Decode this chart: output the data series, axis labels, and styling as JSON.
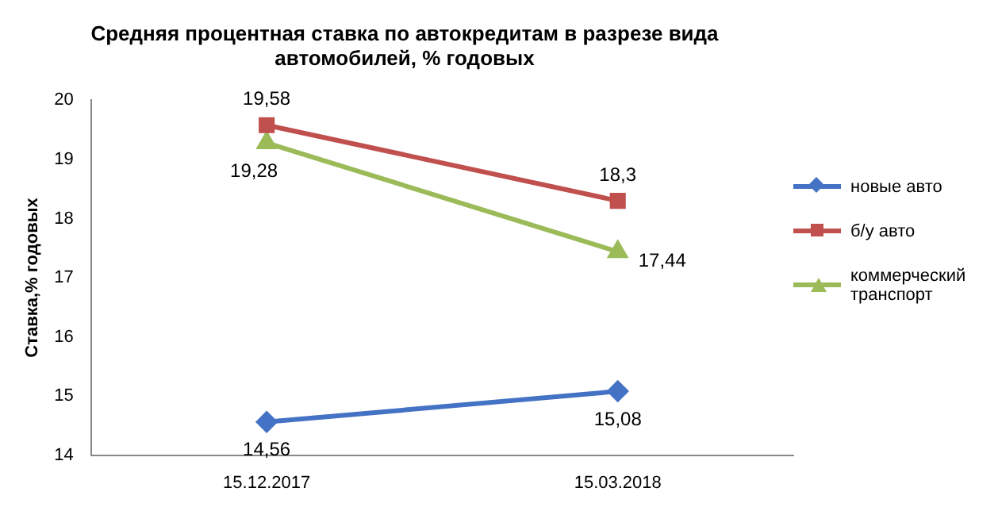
{
  "chart_data": {
    "type": "line",
    "title": "Средняя процентная ставка по автокредитам в разрезе вида автомобилей, % годовых",
    "ylabel": "Ставка,% годовых",
    "categories": [
      "15.12.2017",
      "15.03.2018"
    ],
    "series": [
      {
        "name": "новые авто",
        "color": "#4472c4",
        "marker": "diamond",
        "values": [
          14.56,
          15.08
        ],
        "value_labels": [
          "14,56",
          "15,08"
        ]
      },
      {
        "name": "б/у авто",
        "color": "#c0504d",
        "marker": "square",
        "values": [
          19.58,
          18.3
        ],
        "value_labels": [
          "19,58",
          "18,3"
        ]
      },
      {
        "name": "коммерческий транспорт",
        "color": "#9bbb59",
        "marker": "triangle",
        "values": [
          19.28,
          17.44
        ],
        "value_labels": [
          "19,28",
          "17,44"
        ]
      }
    ],
    "ylim": [
      14,
      20
    ],
    "yticks": [
      14,
      15,
      16,
      17,
      18,
      19,
      20
    ],
    "grid": false,
    "legend": "right",
    "line_style": "solid"
  }
}
